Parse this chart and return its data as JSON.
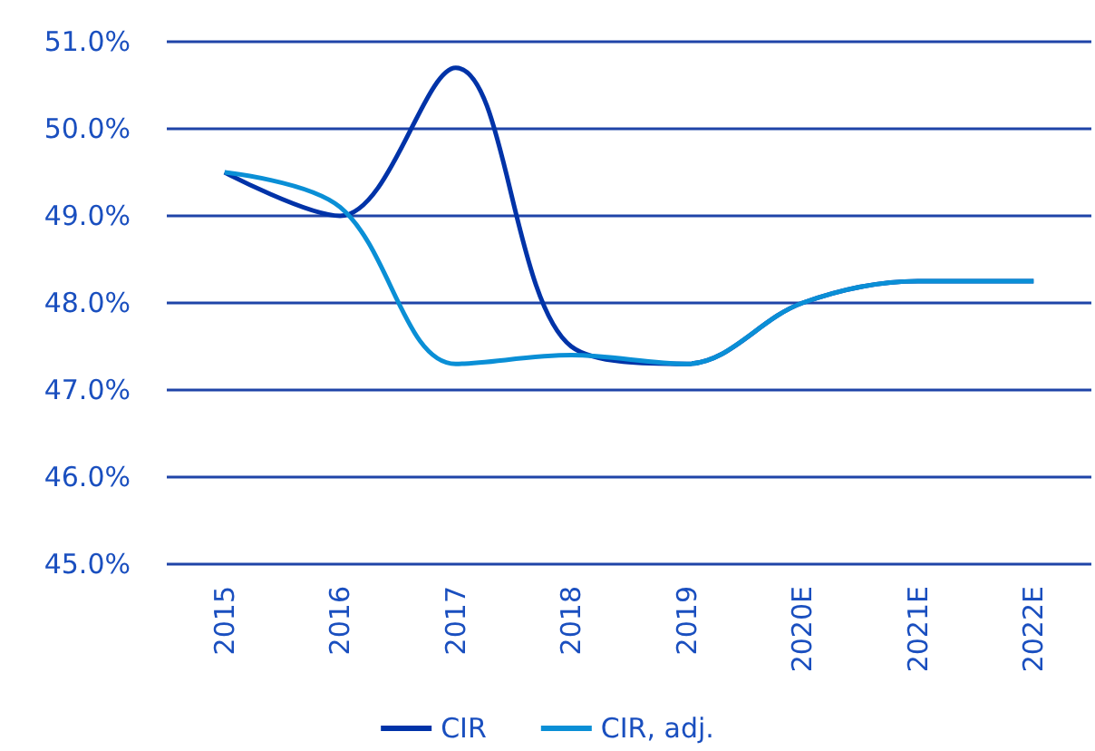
{
  "chart_data": {
    "type": "line",
    "categories": [
      "2015",
      "2016",
      "2017",
      "2018",
      "2019",
      "2020E",
      "2021E",
      "2022E"
    ],
    "series": [
      {
        "name": "CIR",
        "color": "#0033a8",
        "values": [
          49.5,
          49.0,
          50.7,
          47.5,
          47.3,
          48.0,
          48.25,
          48.25
        ]
      },
      {
        "name": "CIR, adj.",
        "color": "#0a8fd6",
        "values": [
          49.5,
          49.1,
          47.3,
          47.4,
          47.3,
          48.0,
          48.25,
          48.25
        ]
      }
    ],
    "ylim": [
      45,
      51
    ],
    "yticks": [
      {
        "value": 45,
        "label": "45.0%"
      },
      {
        "value": 46,
        "label": "46.0%"
      },
      {
        "value": 47,
        "label": "47.0%"
      },
      {
        "value": 48,
        "label": "48.0%"
      },
      {
        "value": 49,
        "label": "49.0%"
      },
      {
        "value": 50,
        "label": "50.0%"
      },
      {
        "value": 51,
        "label": "51.0%"
      }
    ],
    "grid": "y",
    "legend": "bottom",
    "marker": "none",
    "line_style": "solid"
  }
}
